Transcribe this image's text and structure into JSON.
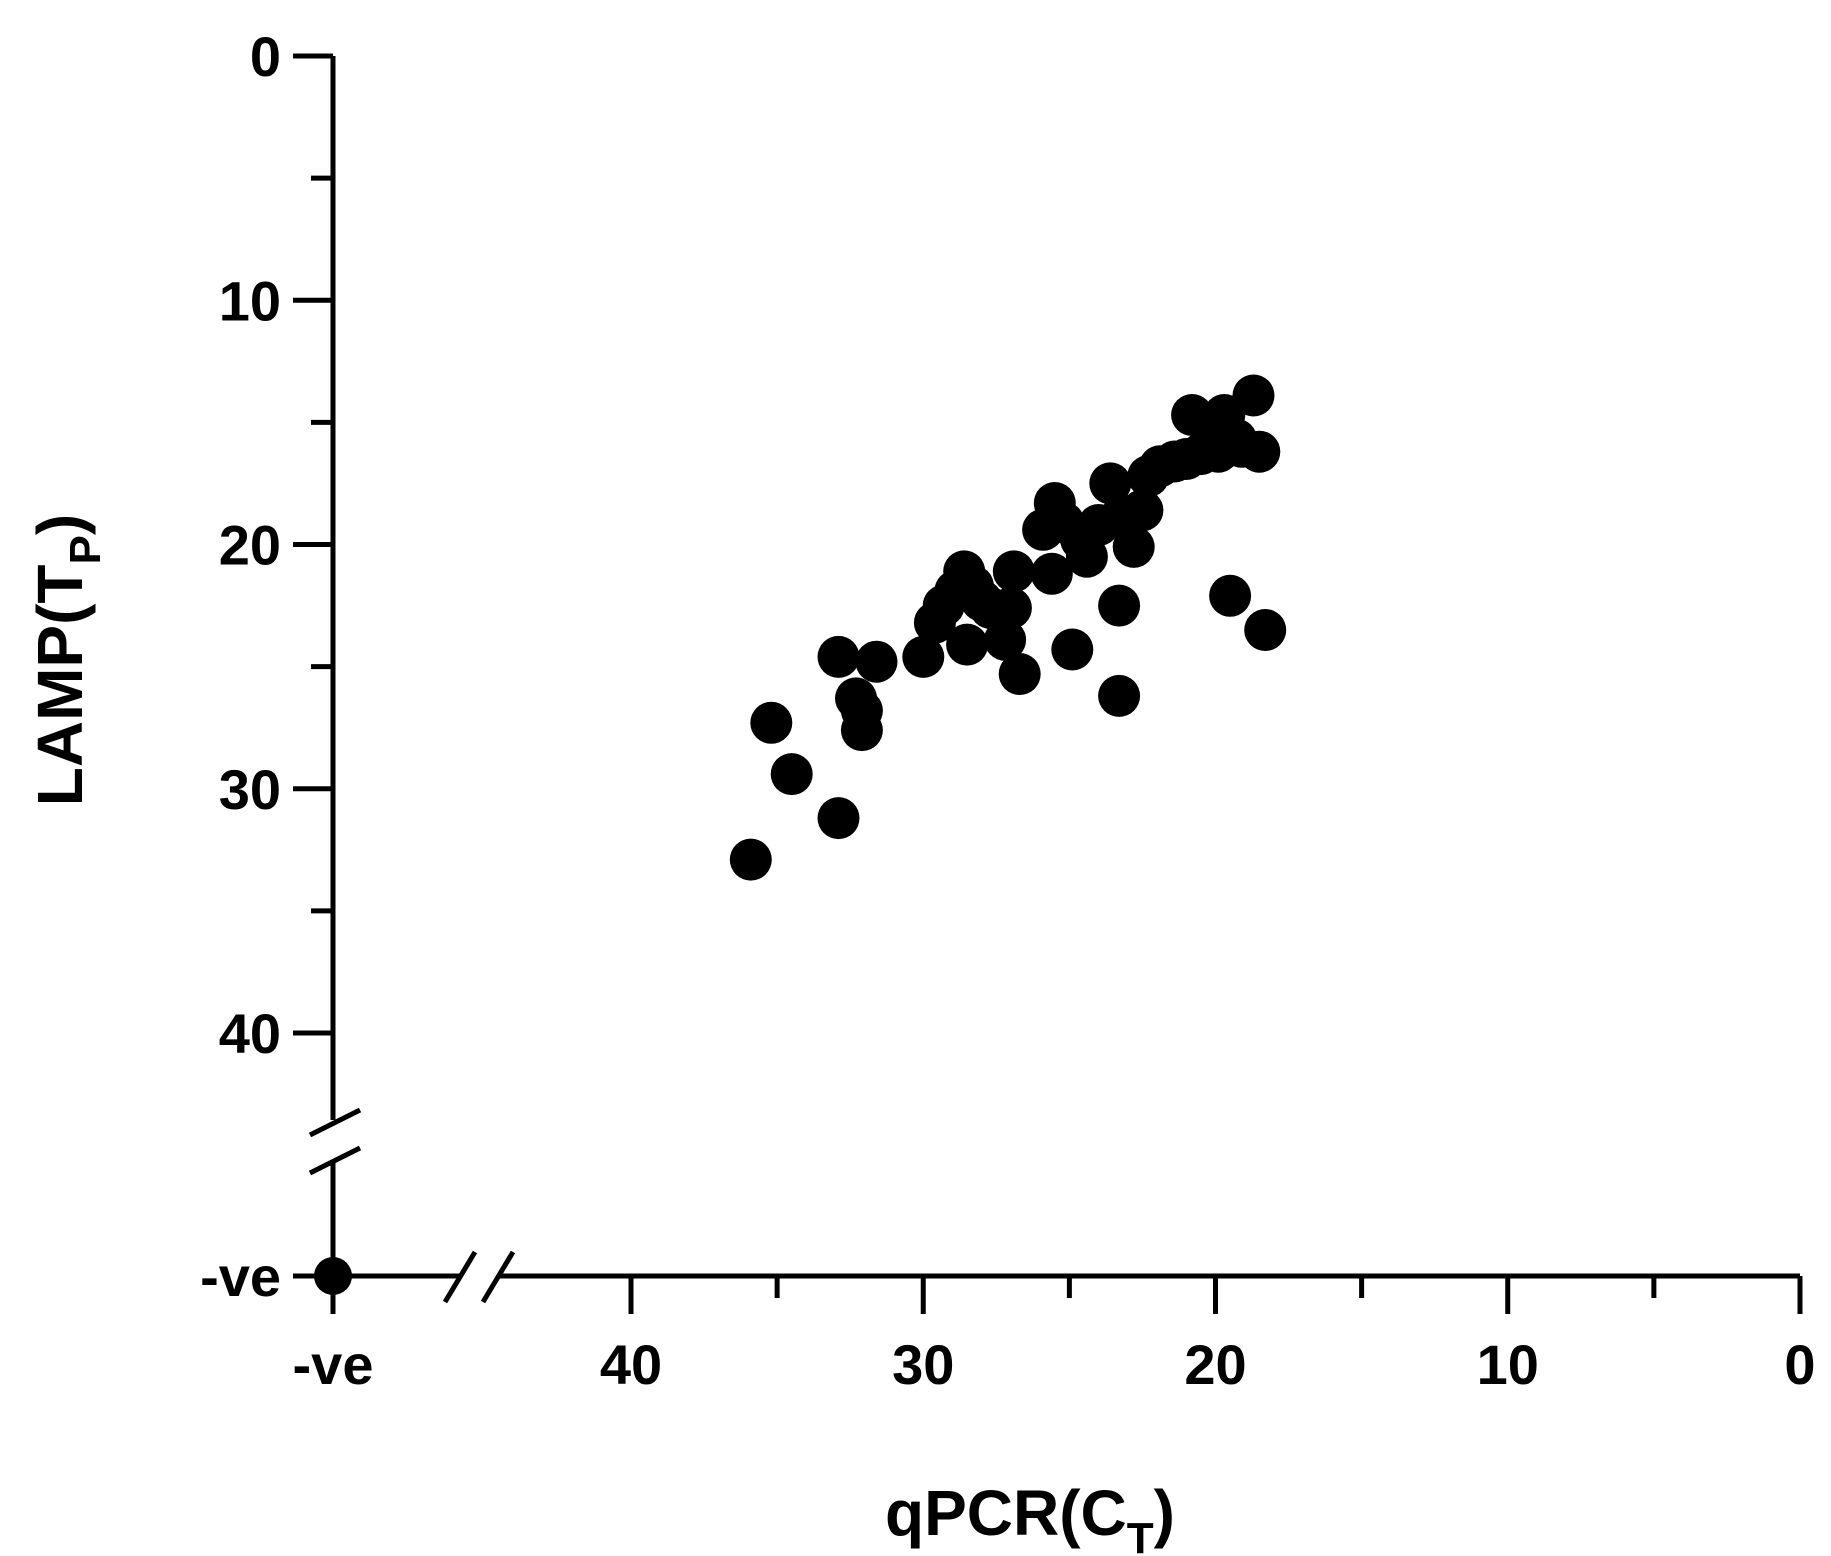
{
  "chart_data": {
    "type": "scatter",
    "title": "",
    "xlabel": {
      "main": "qPCR",
      "open": "(",
      "symbol": "C",
      "sub": "T",
      "close": ")"
    },
    "ylabel": {
      "main": "LAMP",
      "open": "(",
      "symbol": "T",
      "sub": "P",
      "close": ")"
    },
    "x_axis": {
      "reversed": true,
      "range": [
        44,
        0
      ],
      "ticks": [
        40,
        30,
        20,
        10,
        0
      ],
      "minor_ticks": [
        35,
        25,
        15,
        5
      ],
      "negative_label": "-ve",
      "broken": true
    },
    "y_axis": {
      "reversed": true,
      "range": [
        0,
        44
      ],
      "ticks": [
        0,
        10,
        20,
        30,
        40
      ],
      "minor_ticks": [
        5,
        15,
        25,
        35
      ],
      "negative_label": "-ve",
      "broken": true
    },
    "negative_point": {
      "x": "-ve",
      "y": "-ve"
    },
    "points": [
      {
        "x": 35.9,
        "y": 32.9
      },
      {
        "x": 35.2,
        "y": 27.3
      },
      {
        "x": 34.5,
        "y": 29.4
      },
      {
        "x": 32.9,
        "y": 31.2
      },
      {
        "x": 32.9,
        "y": 24.6
      },
      {
        "x": 32.3,
        "y": 26.3
      },
      {
        "x": 32.1,
        "y": 26.8
      },
      {
        "x": 32.1,
        "y": 27.6
      },
      {
        "x": 31.6,
        "y": 24.8
      },
      {
        "x": 30.0,
        "y": 24.6
      },
      {
        "x": 29.6,
        "y": 23.2
      },
      {
        "x": 29.3,
        "y": 22.5
      },
      {
        "x": 28.9,
        "y": 21.9
      },
      {
        "x": 28.6,
        "y": 21.1
      },
      {
        "x": 28.5,
        "y": 24.1
      },
      {
        "x": 28.3,
        "y": 21.7
      },
      {
        "x": 28.0,
        "y": 22.3
      },
      {
        "x": 27.7,
        "y": 22.6
      },
      {
        "x": 27.2,
        "y": 23.9
      },
      {
        "x": 27.0,
        "y": 22.6
      },
      {
        "x": 26.9,
        "y": 21.1
      },
      {
        "x": 26.7,
        "y": 25.3
      },
      {
        "x": 25.9,
        "y": 19.4
      },
      {
        "x": 25.6,
        "y": 21.2
      },
      {
        "x": 25.5,
        "y": 18.3
      },
      {
        "x": 25.2,
        "y": 19.1
      },
      {
        "x": 24.9,
        "y": 24.3
      },
      {
        "x": 24.6,
        "y": 19.8
      },
      {
        "x": 24.4,
        "y": 20.5
      },
      {
        "x": 24.0,
        "y": 19.2
      },
      {
        "x": 23.6,
        "y": 17.5
      },
      {
        "x": 23.2,
        "y": 18.8
      },
      {
        "x": 23.3,
        "y": 22.5
      },
      {
        "x": 23.3,
        "y": 26.2
      },
      {
        "x": 22.8,
        "y": 20.1
      },
      {
        "x": 22.5,
        "y": 18.6
      },
      {
        "x": 22.3,
        "y": 17.2
      },
      {
        "x": 21.9,
        "y": 16.8
      },
      {
        "x": 21.4,
        "y": 16.6
      },
      {
        "x": 21.0,
        "y": 16.5
      },
      {
        "x": 20.8,
        "y": 14.7
      },
      {
        "x": 20.5,
        "y": 16.3
      },
      {
        "x": 20.2,
        "y": 15.9
      },
      {
        "x": 19.9,
        "y": 16.2
      },
      {
        "x": 19.7,
        "y": 14.7
      },
      {
        "x": 19.5,
        "y": 22.1
      },
      {
        "x": 19.3,
        "y": 15.7
      },
      {
        "x": 19.1,
        "y": 16.0
      },
      {
        "x": 18.7,
        "y": 13.9
      },
      {
        "x": 18.5,
        "y": 16.2
      },
      {
        "x": 18.3,
        "y": 23.5
      }
    ],
    "marker": {
      "shape": "circle",
      "color": "#000000"
    },
    "grid": false,
    "legend": "none"
  }
}
